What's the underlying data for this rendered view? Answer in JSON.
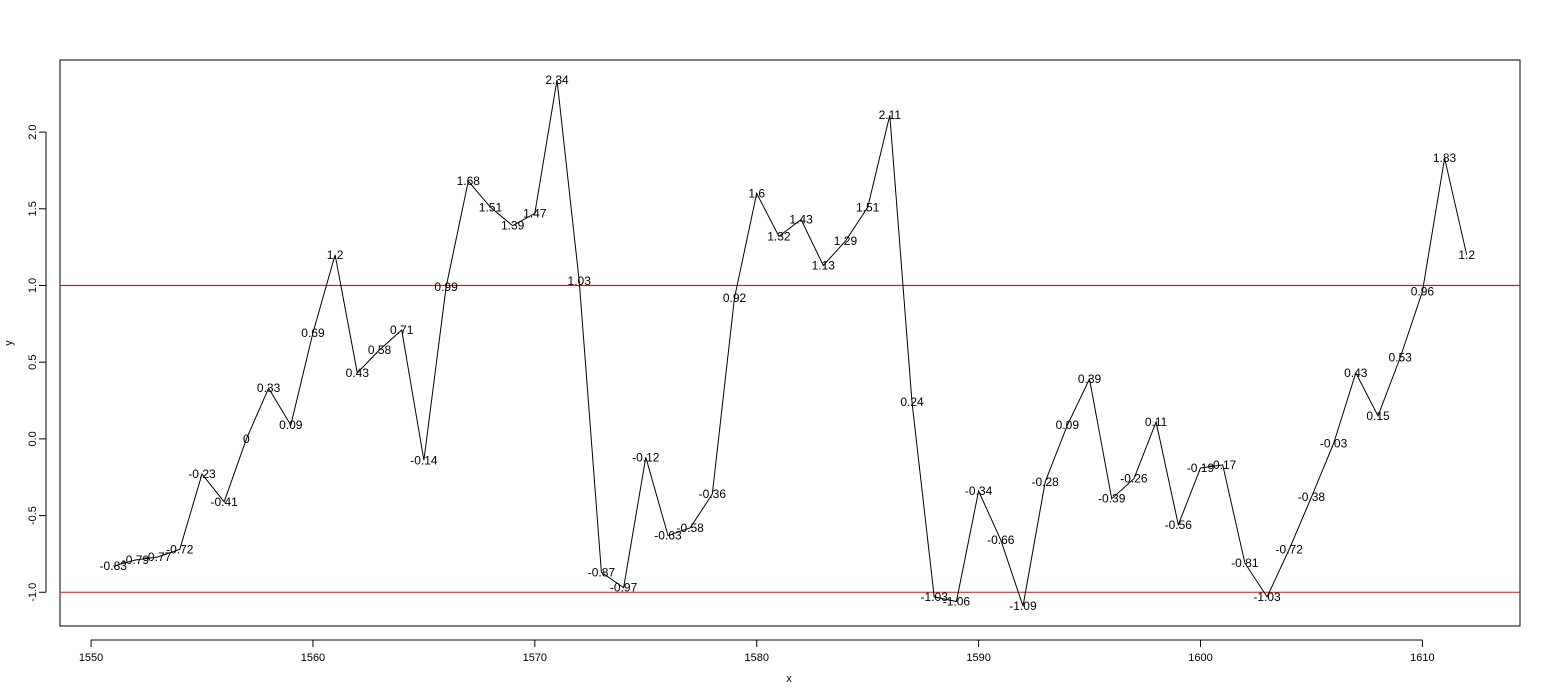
{
  "chart_data": {
    "type": "line",
    "title": "",
    "xlabel": "x",
    "ylabel": "y",
    "xlim": [
      1548.6,
      1614.4
    ],
    "ylim": [
      -1.22,
      2.47
    ],
    "x_ticks": [
      1550,
      1560,
      1570,
      1580,
      1590,
      1600,
      1610
    ],
    "y_ticks": [
      -1.0,
      -0.5,
      0.0,
      0.5,
      1.0,
      1.5,
      2.0
    ],
    "x_tick_labels": [
      "1550",
      "1560",
      "1570",
      "1580",
      "1590",
      "1600",
      "1610"
    ],
    "y_tick_labels": [
      "-1.0",
      "-0.5",
      "0.0",
      "0.5",
      "1.0",
      "1.5",
      "2.0"
    ],
    "grid": false,
    "reference_lines": [
      {
        "orientation": "horizontal",
        "y": 1.0,
        "color": "#ff0000"
      },
      {
        "orientation": "horizontal",
        "y": -1.0,
        "color": "#ff0000"
      }
    ],
    "series": [
      {
        "color": "#000000",
        "x": [
          1551,
          1552,
          1553,
          1554,
          1555,
          1556,
          1557,
          1558,
          1559,
          1560,
          1561,
          1562,
          1563,
          1564,
          1565,
          1566,
          1567,
          1568,
          1569,
          1570,
          1571,
          1572,
          1573,
          1574,
          1575,
          1576,
          1577,
          1578,
          1579,
          1580,
          1581,
          1582,
          1583,
          1584,
          1585,
          1586,
          1587,
          1588,
          1589,
          1590,
          1591,
          1592,
          1593,
          1594,
          1595,
          1596,
          1597,
          1598,
          1599,
          1600,
          1601,
          1602,
          1603,
          1604,
          1605,
          1606,
          1607,
          1608,
          1609,
          1610,
          1611,
          1612
        ],
        "y": [
          -0.83,
          -0.79,
          -0.77,
          -0.72,
          -0.23,
          -0.41,
          0,
          0.33,
          0.09,
          0.69,
          1.2,
          0.43,
          0.58,
          0.71,
          -0.14,
          0.99,
          1.68,
          1.51,
          1.39,
          1.47,
          2.34,
          1.03,
          -0.87,
          -0.97,
          -0.12,
          -0.63,
          -0.58,
          -0.36,
          0.92,
          1.6,
          1.32,
          1.43,
          1.13,
          1.29,
          1.51,
          2.11,
          0.24,
          -1.03,
          -1.06,
          -0.34,
          -0.66,
          -1.09,
          -0.28,
          0.09,
          0.39,
          -0.39,
          -0.26,
          0.11,
          -0.56,
          -0.19,
          -0.17,
          -0.81,
          -1.03,
          -0.72,
          -0.38,
          -0.03,
          0.43,
          0.15,
          0.53,
          0.96,
          1.83,
          1.2
        ],
        "labels": [
          "-0.83",
          "-0.79",
          "-0.77",
          "-0.72",
          "-0.23",
          "-0.41",
          "0",
          "0.33",
          "0.09",
          "0.69",
          "1.2",
          "0.43",
          "0.58",
          "0.71",
          "-0.14",
          "0.99",
          "1.68",
          "1.51",
          "1.39",
          "1.47",
          "2.34",
          "1.03",
          "-0.87",
          "-0.97",
          "-0.12",
          "-0.63",
          "-0.58",
          "-0.36",
          "0.92",
          "1.6",
          "1.32",
          "1.43",
          "1.13",
          "1.29",
          "1.51",
          "2.11",
          "0.24",
          "-1.03",
          "-1.06",
          "-0.34",
          "-0.66",
          "-1.09",
          "-0.28",
          "0.09",
          "0.39",
          "-0.39",
          "-0.26",
          "0.11",
          "-0.56",
          "-0.19",
          "-0.17",
          "-0.81",
          "-1.03",
          "-0.72",
          "-0.38",
          "-0.03",
          "0.43",
          "0.15",
          "0.53",
          "0.96",
          "1.83",
          "1.2"
        ]
      }
    ]
  }
}
